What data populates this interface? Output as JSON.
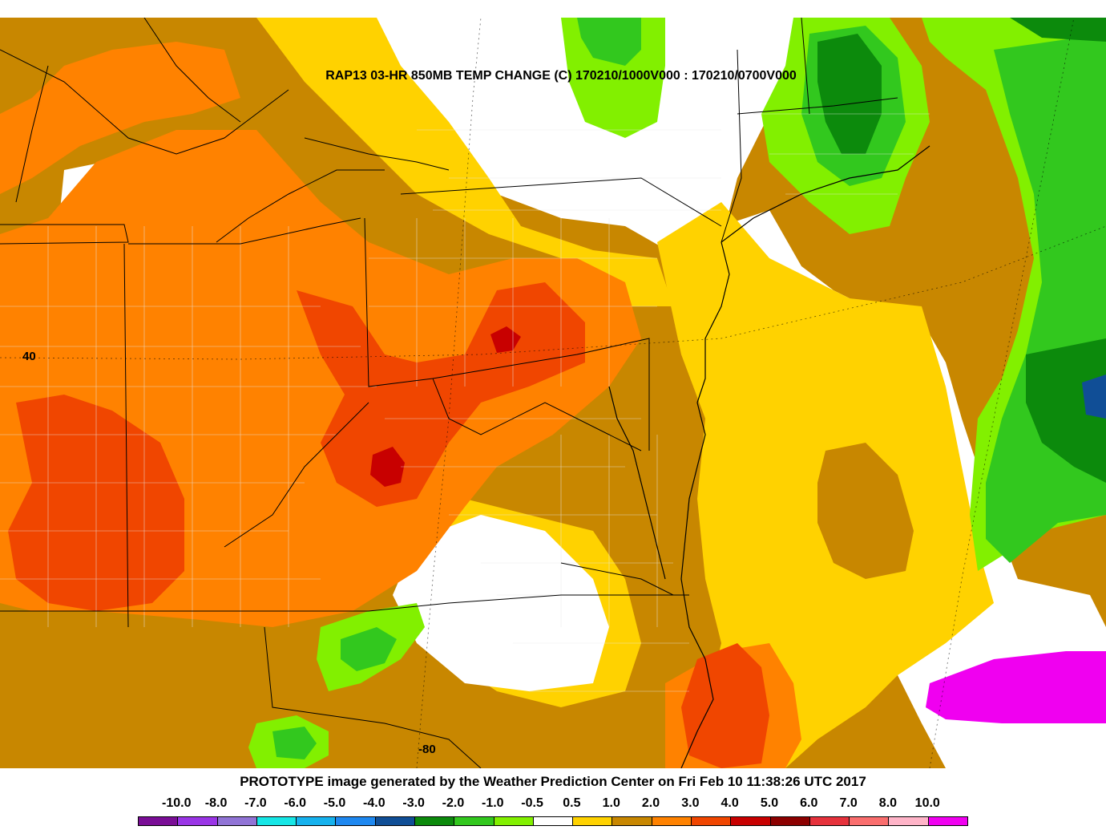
{
  "map": {
    "title": "RAP13 03-HR 850MB TEMP CHANGE (C) 170210/1000V000 : 170210/0700V000",
    "lat_label": "40",
    "lon_label": "-80"
  },
  "footer": {
    "credit": "PROTOTYPE image generated by the Weather Prediction Center on Fri Feb 10 11:38:26 UTC 2017"
  },
  "legend": {
    "labels": [
      "-10.0",
      "-8.0",
      "-7.0",
      "-6.0",
      "-5.0",
      "-4.0",
      "-3.0",
      "-2.0",
      "-1.0",
      "-0.5",
      "0.5",
      "1.0",
      "2.0",
      "3.0",
      "4.0",
      "5.0",
      "6.0",
      "7.0",
      "8.0",
      "10.0"
    ],
    "colors": [
      "#7a0e96",
      "#9a35e6",
      "#9174d6",
      "#16e6e6",
      "#16b2ee",
      "#1e88f0",
      "#104e96",
      "#0c8a0c",
      "#32c81e",
      "#82f000",
      "#ffffff",
      "#ffd200",
      "#c88700",
      "#ff8200",
      "#f04600",
      "#c80000",
      "#8c0000",
      "#e6323c",
      "#fa6e6e",
      "#ffb4c8",
      "#f000f0"
    ]
  }
}
